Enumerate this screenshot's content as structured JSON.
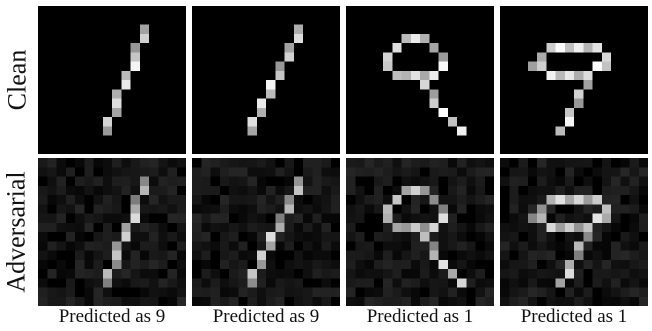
{
  "row_labels": {
    "clean": "Clean",
    "adversarial": "Adversarial"
  },
  "captions": [
    "Predicted as 9",
    "Predicted as 9",
    "Predicted as 1",
    "Predicted as 1"
  ],
  "colors": {
    "background": "#ffffff",
    "image_background": "#000000",
    "caption_text": "#111111"
  }
}
